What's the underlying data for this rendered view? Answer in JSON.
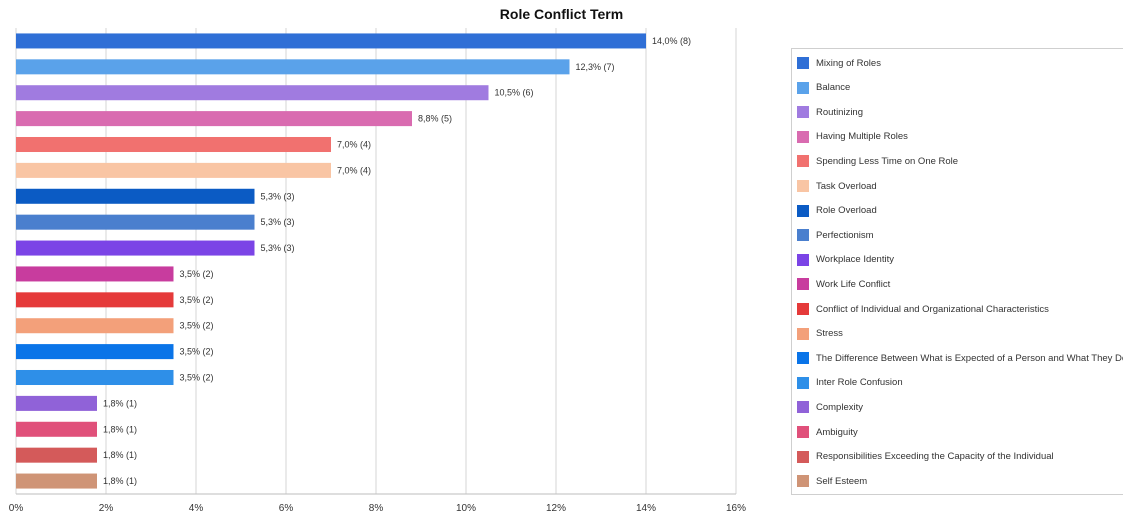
{
  "chart_data": {
    "type": "bar",
    "orientation": "horizontal",
    "title": "Role Conflict Term",
    "xlim": [
      0,
      16
    ],
    "x_ticks": [
      "0%",
      "2%",
      "4%",
      "6%",
      "8%",
      "10%",
      "12%",
      "14%",
      "16%"
    ],
    "grid": true,
    "legend_position": "right",
    "categories": [
      "Mixing of Roles",
      "Balance",
      "Routinizing",
      "Having Multiple Roles",
      "Spending Less Time on One Role",
      "Task Overload",
      "Role Overload",
      "Perfectionism",
      "Workplace Identity",
      "Work Life Conflict",
      "Conflict of Individual and Organizational Characteristics",
      "Stress",
      "The Difference Between What is Expected of a Person and What They Do",
      "Inter Role Confusion",
      "Complexity",
      "Ambiguity",
      "Responsibilities Exceeding the Capacity of the Individual",
      "Self Esteem"
    ],
    "values": [
      14.0,
      12.3,
      10.5,
      8.8,
      7.0,
      7.0,
      5.3,
      5.3,
      5.3,
      3.5,
      3.5,
      3.5,
      3.5,
      3.5,
      1.8,
      1.8,
      1.8,
      1.8
    ],
    "counts": [
      8,
      7,
      6,
      5,
      4,
      4,
      3,
      3,
      3,
      2,
      2,
      2,
      2,
      2,
      1,
      1,
      1,
      1
    ],
    "data_labels": [
      "14,0% (8)",
      "12,3% (7)",
      "10,5% (6)",
      "8,8% (5)",
      "7,0% (4)",
      "7,0% (4)",
      "5,3% (3)",
      "5,3% (3)",
      "5,3% (3)",
      "3,5% (2)",
      "3,5% (2)",
      "3,5% (2)",
      "3,5% (2)",
      "3,5% (2)",
      "1,8% (1)",
      "1,8% (1)",
      "1,8% (1)",
      "1,8% (1)"
    ],
    "colors": [
      "#2f6fd6",
      "#5aa2ea",
      "#a07be0",
      "#d96bb0",
      "#f1716f",
      "#f9c5a4",
      "#0b5bc4",
      "#4a7fce",
      "#7b44e6",
      "#c83c9e",
      "#e53a3a",
      "#f3a07a",
      "#0a74e8",
      "#2e8fe8",
      "#9062d8",
      "#e0507a",
      "#d45a5a",
      "#cf9476"
    ]
  }
}
